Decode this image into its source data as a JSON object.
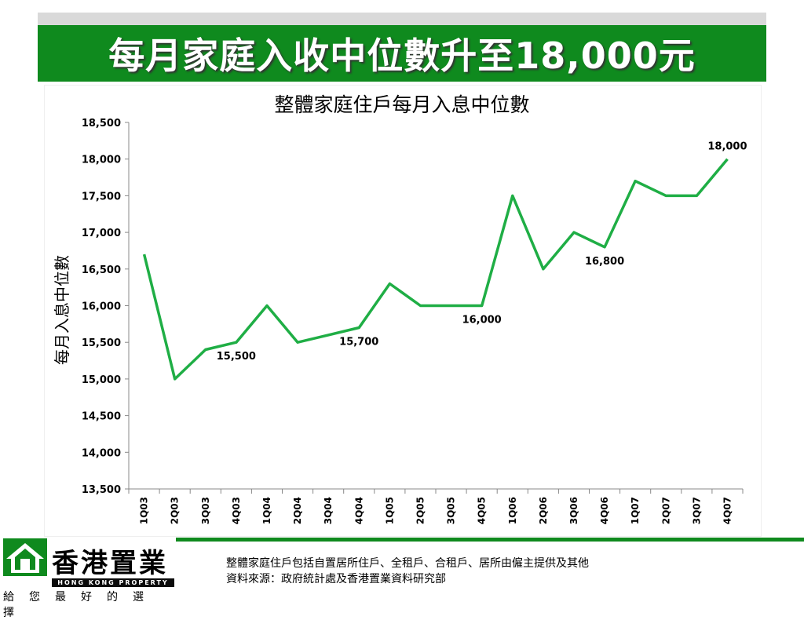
{
  "banner": {
    "title": "每月家庭入收中位數升至18,000元"
  },
  "chart_data": {
    "type": "line",
    "title": "整體家庭住戶每月入息中位數",
    "ylabel": "每月入息中位數",
    "xlabel": "",
    "ylim": [
      13500,
      18500
    ],
    "yticks": [
      13500,
      14000,
      14500,
      15000,
      15500,
      16000,
      16500,
      17000,
      17500,
      18000,
      18500
    ],
    "grid": false,
    "legend": "none",
    "color": "#1fae45",
    "categories": [
      "1Q03",
      "2Q03",
      "3Q03",
      "4Q03",
      "1Q04",
      "2Q04",
      "3Q04",
      "4Q04",
      "1Q05",
      "2Q05",
      "3Q05",
      "4Q05",
      "1Q06",
      "2Q06",
      "3Q06",
      "4Q06",
      "1Q07",
      "2Q07",
      "3Q07",
      "4Q07"
    ],
    "values": [
      16700,
      15000,
      15400,
      15500,
      16000,
      15500,
      15600,
      15700,
      16300,
      16000,
      16000,
      16000,
      17500,
      16500,
      17000,
      16800,
      17700,
      17500,
      17500,
      18000
    ],
    "data_labels": [
      {
        "index": 3,
        "text": "15,500"
      },
      {
        "index": 7,
        "text": "15,700"
      },
      {
        "index": 11,
        "text": "16,000"
      },
      {
        "index": 15,
        "text": "16,800"
      },
      {
        "index": 19,
        "text": "18,000"
      }
    ]
  },
  "logo": {
    "name": "香港置業",
    "english": "HONG KONG PROPERTY",
    "slogan": "給您最好的選擇"
  },
  "notes": {
    "line1": "整體家庭住戶包括自置居所住戶、全租戶、合租戶、居所由僱主提供及其他",
    "line2": "資料來源：政府統計處及香港置業資料研究部"
  }
}
